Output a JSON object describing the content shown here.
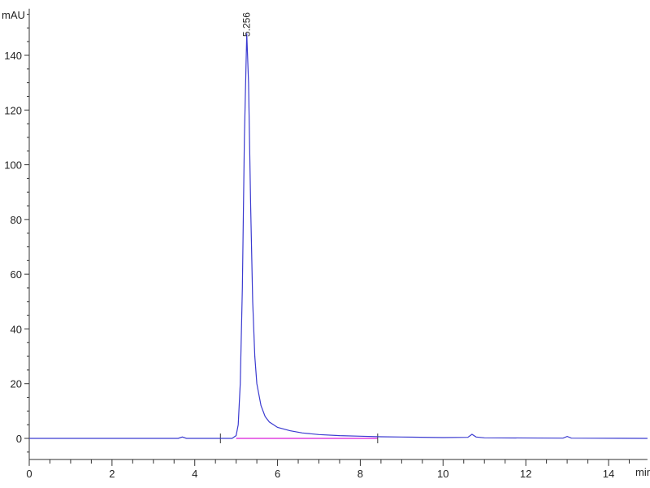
{
  "chart_data": {
    "type": "line",
    "title": "",
    "xlabel": "min",
    "ylabel": "mAU",
    "xlim": [
      0,
      14.94
    ],
    "ylim": [
      -7.7,
      157
    ],
    "x_ticks": [
      0,
      2,
      4,
      6,
      8,
      10,
      12,
      14
    ],
    "y_ticks": [
      0,
      20,
      40,
      60,
      80,
      100,
      120,
      140
    ],
    "grid": false,
    "series": [
      {
        "color": "#3a3ad0",
        "points": [
          [
            0,
            0
          ],
          [
            3.6,
            0
          ],
          [
            3.7,
            0.5
          ],
          [
            3.8,
            0
          ],
          [
            4.9,
            0
          ],
          [
            5.0,
            1
          ],
          [
            5.05,
            5
          ],
          [
            5.1,
            20
          ],
          [
            5.15,
            55
          ],
          [
            5.2,
            110
          ],
          [
            5.256,
            148
          ],
          [
            5.3,
            130
          ],
          [
            5.35,
            85
          ],
          [
            5.4,
            50
          ],
          [
            5.45,
            30
          ],
          [
            5.5,
            20
          ],
          [
            5.6,
            12
          ],
          [
            5.7,
            8
          ],
          [
            5.8,
            6
          ],
          [
            6.0,
            4
          ],
          [
            6.3,
            2.8
          ],
          [
            6.6,
            2
          ],
          [
            7.0,
            1.4
          ],
          [
            7.5,
            1
          ],
          [
            8.0,
            0.8
          ],
          [
            8.5,
            0.6
          ],
          [
            9.0,
            0.5
          ],
          [
            10.0,
            0.3
          ],
          [
            10.6,
            0.4
          ],
          [
            10.7,
            1.5
          ],
          [
            10.8,
            0.5
          ],
          [
            11.0,
            0.2
          ],
          [
            12.9,
            0.1
          ],
          [
            13.0,
            0.7
          ],
          [
            13.1,
            0.1
          ],
          [
            14.94,
            0
          ]
        ]
      }
    ],
    "baseline": {
      "color": "#e040e0",
      "from": [
        5.0,
        0
      ],
      "to": [
        8.42,
        0
      ]
    },
    "integration_marks": [
      4.62,
      8.42
    ],
    "annotations": [
      {
        "x": 5.256,
        "y": 148,
        "text": "5.256"
      }
    ]
  }
}
